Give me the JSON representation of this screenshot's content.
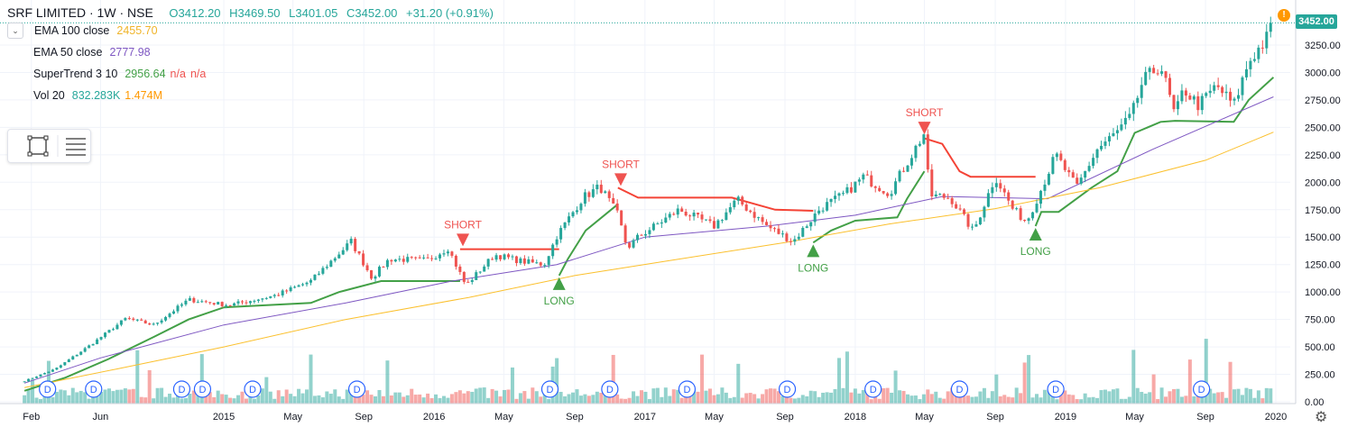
{
  "header": {
    "symbol": "SRF LIMITED · 1W · NSE",
    "open": "O3412.20",
    "high": "H3469.50",
    "low": "L3401.05",
    "close": "C3452.00",
    "change": "+31.20 (+0.91%)"
  },
  "indicators": [
    {
      "label": "EMA 100 close",
      "value": "2455.70",
      "color": "#f0b429"
    },
    {
      "label": "EMA 50 close",
      "value": "2777.98",
      "color": "#7e57c2"
    },
    {
      "label": "SuperTrend 3 10",
      "value": "2956.64",
      "extra1": "n/a",
      "extra2": "n/a",
      "color": "#43a047",
      "extra_color": "#ef5350"
    },
    {
      "label": "Vol 20",
      "value": "832.283K",
      "extra1": "1.474M",
      "color": "#26a69a",
      "extra_color": "#ff9800"
    }
  ],
  "price_tag": "3452.00",
  "alert": "!",
  "gear_icon": "gear-icon",
  "colors": {
    "up": "#26a69a",
    "down": "#ef5350",
    "supertrend_up": "#43a047",
    "supertrend_down": "#f44336",
    "ema50": "#7e57c2",
    "ema100": "#fbc02d"
  },
  "chart_data": {
    "type": "candlestick",
    "title": "SRF LIMITED · 1W · NSE",
    "ylim": [
      0,
      3500
    ],
    "y_ticks": [
      "3250.00",
      "3000.00",
      "2750.00",
      "2500.00",
      "2250.00",
      "2000.00",
      "1750.00",
      "1500.00",
      "1250.00",
      "1000.00",
      "750.00",
      "500.00",
      "250.00",
      "0.00"
    ],
    "x_ticks": [
      "Feb",
      "Jun",
      "2015",
      "May",
      "Sep",
      "2016",
      "May",
      "Sep",
      "2017",
      "May",
      "Sep",
      "2018",
      "May",
      "Sep",
      "2019",
      "May",
      "Sep",
      "2020"
    ],
    "x_tick_dates": [
      "2014-02-01",
      "2014-06-01",
      "2015-01-01",
      "2015-05-01",
      "2015-09-01",
      "2016-01-01",
      "2016-05-01",
      "2016-09-01",
      "2017-01-01",
      "2017-05-01",
      "2017-09-01",
      "2018-01-01",
      "2018-05-01",
      "2018-09-01",
      "2019-01-01",
      "2019-05-01",
      "2019-09-01",
      "2020-01-01"
    ],
    "price_path": [
      [
        "2014-01-20",
        190
      ],
      [
        "2014-03-15",
        300
      ],
      [
        "2014-05-15",
        520
      ],
      [
        "2014-07-15",
        760
      ],
      [
        "2014-09-01",
        700
      ],
      [
        "2014-11-01",
        930
      ],
      [
        "2015-01-10",
        880
      ],
      [
        "2015-04-01",
        970
      ],
      [
        "2015-06-01",
        1100
      ],
      [
        "2015-08-10",
        1460
      ],
      [
        "2015-09-15",
        1130
      ],
      [
        "2015-10-15",
        1300
      ],
      [
        "2015-12-20",
        1290
      ],
      [
        "2016-01-25",
        1400
      ],
      [
        "2016-02-25",
        1060
      ],
      [
        "2016-04-15",
        1340
      ],
      [
        "2016-06-01",
        1280
      ],
      [
        "2016-07-10",
        1250
      ],
      [
        "2016-08-01",
        1510
      ],
      [
        "2016-09-15",
        1860
      ],
      [
        "2016-10-15",
        1960
      ],
      [
        "2016-11-15",
        1700
      ],
      [
        "2016-12-01",
        1400
      ],
      [
        "2016-12-20",
        1500
      ],
      [
        "2017-03-01",
        1750
      ],
      [
        "2017-05-01",
        1600
      ],
      [
        "2017-06-10",
        1840
      ],
      [
        "2017-08-01",
        1600
      ],
      [
        "2017-09-15",
        1460
      ],
      [
        "2017-11-01",
        1760
      ],
      [
        "2017-12-15",
        1900
      ],
      [
        "2018-01-15",
        2050
      ],
      [
        "2018-03-01",
        1900
      ],
      [
        "2018-04-20",
        2350
      ],
      [
        "2018-05-01",
        2450
      ],
      [
        "2018-05-10",
        1880
      ],
      [
        "2018-06-15",
        1860
      ],
      [
        "2018-07-25",
        1550
      ],
      [
        "2018-09-01",
        2050
      ],
      [
        "2018-10-01",
        1760
      ],
      [
        "2018-10-25",
        1640
      ],
      [
        "2018-11-15",
        1880
      ],
      [
        "2018-12-15",
        2250
      ],
      [
        "2019-01-20",
        1950
      ],
      [
        "2019-02-25",
        2300
      ],
      [
        "2019-04-01",
        2460
      ],
      [
        "2019-04-25",
        2600
      ],
      [
        "2019-05-15",
        2920
      ],
      [
        "2019-06-15",
        3070
      ],
      [
        "2019-07-10",
        2600
      ],
      [
        "2019-07-25",
        2850
      ],
      [
        "2019-08-20",
        2700
      ],
      [
        "2019-09-20",
        2880
      ],
      [
        "2019-10-20",
        2700
      ],
      [
        "2019-11-15",
        3100
      ],
      [
        "2019-12-15",
        3300
      ],
      [
        "2019-12-28",
        3452
      ]
    ],
    "series": [
      {
        "name": "SuperTrend 3 10",
        "color": "#43a047",
        "direction": "up",
        "points": [
          [
            "2014-01-20",
            100
          ],
          [
            "2014-04-01",
            220
          ],
          [
            "2014-06-15",
            390
          ],
          [
            "2014-09-01",
            590
          ],
          [
            "2014-11-01",
            750
          ],
          [
            "2015-01-01",
            860
          ],
          [
            "2015-06-01",
            900
          ],
          [
            "2015-07-20",
            1000
          ],
          [
            "2015-10-01",
            1100
          ],
          [
            "2016-02-15",
            1100
          ]
        ]
      },
      {
        "name": "SuperTrend 3 10",
        "color": "#f44336",
        "direction": "down",
        "points": [
          [
            "2016-02-15",
            1390
          ],
          [
            "2016-08-05",
            1390
          ]
        ]
      },
      {
        "name": "SuperTrend 3 10",
        "color": "#43a047",
        "direction": "up",
        "points": [
          [
            "2016-08-05",
            1150
          ],
          [
            "2016-08-20",
            1300
          ],
          [
            "2016-09-20",
            1560
          ],
          [
            "2016-11-15",
            1800
          ]
        ]
      },
      {
        "name": "SuperTrend 3 10",
        "color": "#f44336",
        "direction": "down",
        "points": [
          [
            "2016-11-15",
            1950
          ],
          [
            "2016-12-20",
            1860
          ],
          [
            "2017-06-01",
            1860
          ],
          [
            "2017-08-15",
            1750
          ],
          [
            "2017-10-20",
            1740
          ]
        ]
      },
      {
        "name": "SuperTrend 3 10",
        "color": "#43a047",
        "direction": "up",
        "points": [
          [
            "2017-10-20",
            1450
          ],
          [
            "2017-11-20",
            1560
          ],
          [
            "2018-01-01",
            1650
          ],
          [
            "2018-03-15",
            1680
          ],
          [
            "2018-04-01",
            1850
          ],
          [
            "2018-05-01",
            2100
          ]
        ]
      },
      {
        "name": "SuperTrend 3 10",
        "color": "#f44336",
        "direction": "down",
        "points": [
          [
            "2018-05-01",
            2400
          ],
          [
            "2018-06-01",
            2350
          ],
          [
            "2018-07-01",
            2100
          ],
          [
            "2018-07-20",
            2050
          ],
          [
            "2018-11-10",
            2050
          ]
        ]
      },
      {
        "name": "SuperTrend 3 10",
        "color": "#43a047",
        "direction": "up",
        "points": [
          [
            "2018-11-10",
            1600
          ],
          [
            "2018-11-20",
            1730
          ],
          [
            "2018-12-20",
            1730
          ],
          [
            "2019-02-15",
            1950
          ],
          [
            "2019-04-01",
            2100
          ],
          [
            "2019-05-01",
            2450
          ],
          [
            "2019-06-15",
            2550
          ],
          [
            "2019-07-10",
            2560
          ],
          [
            "2019-10-20",
            2550
          ],
          [
            "2019-11-15",
            2750
          ],
          [
            "2019-12-28",
            2956
          ]
        ]
      },
      {
        "name": "EMA 50 close",
        "color": "#7e57c2",
        "points": [
          [
            "2014-01-20",
            170
          ],
          [
            "2014-06-01",
            400
          ],
          [
            "2015-01-01",
            700
          ],
          [
            "2015-08-01",
            900
          ],
          [
            "2016-02-01",
            1100
          ],
          [
            "2016-08-01",
            1250
          ],
          [
            "2017-01-01",
            1500
          ],
          [
            "2017-08-01",
            1600
          ],
          [
            "2018-01-01",
            1700
          ],
          [
            "2018-06-01",
            1870
          ],
          [
            "2018-12-01",
            1850
          ],
          [
            "2019-06-01",
            2300
          ],
          [
            "2019-12-28",
            2778
          ]
        ]
      },
      {
        "name": "EMA 100 close",
        "color": "#fbc02d",
        "points": [
          [
            "2014-01-20",
            130
          ],
          [
            "2014-07-01",
            300
          ],
          [
            "2015-01-01",
            500
          ],
          [
            "2015-08-01",
            750
          ],
          [
            "2016-03-01",
            950
          ],
          [
            "2016-09-01",
            1150
          ],
          [
            "2017-03-01",
            1300
          ],
          [
            "2017-09-01",
            1450
          ],
          [
            "2018-03-01",
            1620
          ],
          [
            "2018-09-01",
            1760
          ],
          [
            "2019-03-01",
            1950
          ],
          [
            "2019-09-01",
            2200
          ],
          [
            "2019-12-28",
            2456
          ]
        ]
      }
    ],
    "annotations": [
      {
        "label": "SHORT",
        "date": "2016-02-20",
        "price": 1400,
        "kind": "short"
      },
      {
        "label": "LONG",
        "date": "2016-08-05",
        "price": 1150,
        "kind": "long"
      },
      {
        "label": "SHORT",
        "date": "2016-11-20",
        "price": 1950,
        "kind": "short"
      },
      {
        "label": "LONG",
        "date": "2017-10-20",
        "price": 1450,
        "kind": "long"
      },
      {
        "label": "SHORT",
        "date": "2018-05-01",
        "price": 2420,
        "kind": "short"
      },
      {
        "label": "LONG",
        "date": "2018-11-10",
        "price": 1600,
        "kind": "long"
      }
    ],
    "dividend_label": "D",
    "dividend_dates": [
      "2014-03-01",
      "2014-05-20",
      "2014-10-20",
      "2014-11-25",
      "2015-02-20",
      "2015-08-20",
      "2016-07-20",
      "2016-11-01",
      "2017-03-15",
      "2017-09-05",
      "2018-02-01",
      "2018-07-01",
      "2018-12-15",
      "2019-08-25"
    ],
    "volume": {
      "scale_max": 625,
      "description": "weekly volume bars, spikes up to ~590K in 2019"
    }
  }
}
